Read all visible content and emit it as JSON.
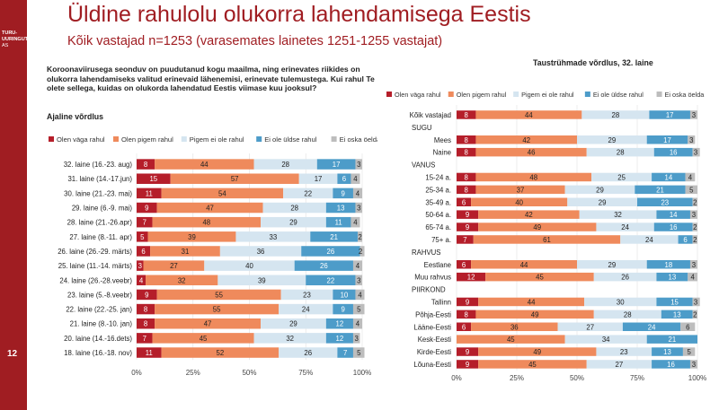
{
  "brand": {
    "line1": "TURU-",
    "line2": "UURINGUTE",
    "line3": "AS"
  },
  "page_number": "12",
  "title": "Üldine rahulolu olukorra lahendamisega Eestis",
  "subtitle": "Kõik vastajad n=1253 (varasemates lainetes 1251-1255 vastajat)",
  "question": "Koroonaviirusega seonduv on puudutanud kogu maailma, ning erinevates riikides on olukorra lahendamiseks valitud erinevaid lähenemisi, erinevate tulemustega. Kui rahul Te olete sellega, kuidas on olukorda lahendatud Eestis viimase kuu jooksul?",
  "left_heading": "Ajaline võrdlus",
  "right_heading": "Taustrühmade võrdlus, 32. laine",
  "colors": {
    "very_satisfied": "#b51e2a",
    "satisfied": "#ef8a5c",
    "not_satisfied": "#d5e5f0",
    "not_at_all": "#4d9cc9",
    "dont_know": "#bdbdbd"
  },
  "chart_data": [
    {
      "type": "bar",
      "stacked": true,
      "orientation": "horizontal",
      "title": "Ajaline võrdlus",
      "xlim": [
        0,
        100
      ],
      "xticks": [
        "0%",
        "25%",
        "50%",
        "75%",
        "100%"
      ],
      "legend": [
        "Olen väga rahul",
        "Olen pigem rahul",
        "Pigem ei ole rahul",
        "Ei ole üldse rahul",
        "Ei oska öelda"
      ],
      "categories": [
        "32. laine (16.-23. aug)",
        "31. laine (14.-17.jun)",
        "30. laine (21.-23. mai)",
        "29. laine (6.-9. mai)",
        "28. laine (21.-26.apr)",
        "27. laine (8.-11. apr)",
        "26. laine (26.-29. märts)",
        "25. laine (11.-14. märts)",
        "24. laine (26.-28.veebr)",
        "23. laine (5.-8.veebr)",
        "22. laine (22.-25. jan)",
        "21. laine (8.-10. jan)",
        "20. laine (14.-16.dets)",
        "18. laine (16.-18. nov)"
      ],
      "series": [
        {
          "name": "Olen väga rahul",
          "values": [
            8,
            15,
            11,
            9,
            7,
            5,
            6,
            3,
            4,
            9,
            8,
            8,
            7,
            11
          ]
        },
        {
          "name": "Olen pigem rahul",
          "values": [
            44,
            57,
            54,
            47,
            48,
            39,
            31,
            27,
            32,
            55,
            55,
            47,
            45,
            52
          ]
        },
        {
          "name": "Pigem ei ole rahul",
          "values": [
            28,
            17,
            22,
            28,
            29,
            33,
            36,
            40,
            39,
            23,
            24,
            29,
            32,
            26
          ]
        },
        {
          "name": "Ei ole üldse rahul",
          "values": [
            17,
            6,
            9,
            13,
            11,
            21,
            26,
            26,
            22,
            10,
            9,
            12,
            12,
            7
          ]
        },
        {
          "name": "Ei oska öelda",
          "values": [
            3,
            4,
            4,
            3,
            4,
            2,
            2,
            4,
            3,
            4,
            5,
            4,
            3,
            5
          ]
        }
      ]
    },
    {
      "type": "bar",
      "stacked": true,
      "orientation": "horizontal",
      "title": "Taustrühmade võrdlus, 32. laine",
      "xlim": [
        0,
        100
      ],
      "xticks": [
        "0%",
        "25%",
        "50%",
        "75%",
        "100%"
      ],
      "legend": [
        "Olen väga rahul",
        "Olen pigem rahul",
        "Pigem ei ole rahul",
        "Ei ole üldse rahul",
        "Ei oska öelda"
      ],
      "categories": [
        "Kõik vastajad",
        "SUGU",
        "Mees",
        "Naine",
        "VANUS",
        "15-24 a.",
        "25-34 a.",
        "35-49 a.",
        "50-64 a.",
        "65-74 a.",
        "75+ a.",
        "RAHVUS",
        "Eestlane",
        "Muu rahvus",
        "PIIRKOND",
        "Tallinn",
        "Põhja-Eesti",
        "Lääne-Eesti",
        "Kesk-Eesti",
        "Kirde-Eesti",
        "Lõuna-Eesti"
      ],
      "series": [
        {
          "name": "Olen väga rahul",
          "values": [
            8,
            null,
            8,
            8,
            null,
            8,
            8,
            6,
            9,
            9,
            7,
            null,
            6,
            12,
            null,
            9,
            8,
            6,
            null,
            9,
            9
          ]
        },
        {
          "name": "Olen pigem rahul",
          "values": [
            44,
            null,
            42,
            46,
            null,
            48,
            37,
            40,
            42,
            49,
            61,
            null,
            44,
            45,
            null,
            44,
            49,
            36,
            45,
            49,
            45
          ]
        },
        {
          "name": "Pigem ei ole rahul",
          "values": [
            28,
            null,
            29,
            28,
            null,
            25,
            29,
            29,
            32,
            24,
            24,
            null,
            29,
            26,
            null,
            30,
            28,
            27,
            34,
            23,
            27
          ]
        },
        {
          "name": "Ei ole üldse rahul",
          "values": [
            17,
            null,
            17,
            16,
            null,
            14,
            21,
            23,
            14,
            16,
            6,
            null,
            18,
            13,
            null,
            15,
            13,
            24,
            21,
            13,
            16
          ]
        },
        {
          "name": "Ei oska öelda",
          "values": [
            3,
            null,
            3,
            3,
            null,
            4,
            5,
            2,
            3,
            2,
            2,
            null,
            3,
            4,
            null,
            3,
            2,
            6,
            null,
            5,
            3
          ]
        }
      ]
    }
  ]
}
